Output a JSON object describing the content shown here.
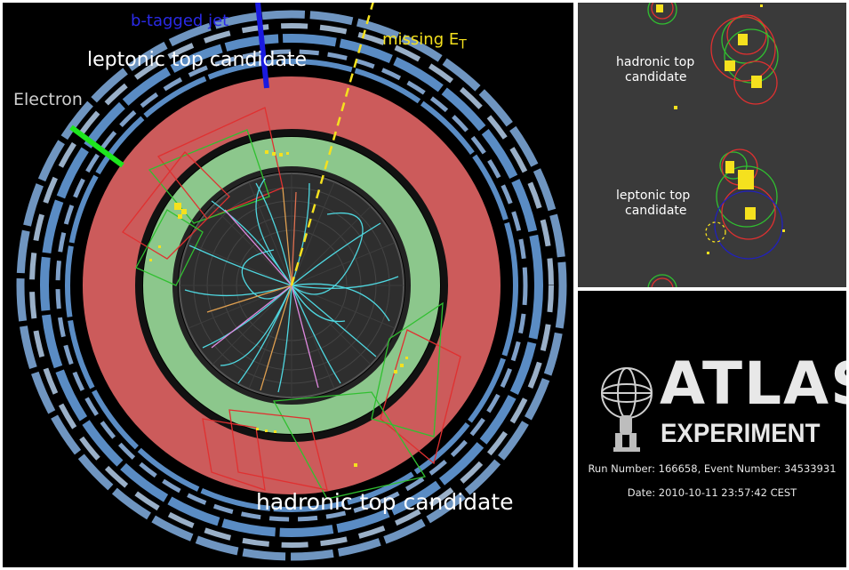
{
  "main": {
    "labels": {
      "b_tagged_jet": "b-tagged jet",
      "leptonic_top": "leptonic top candidate",
      "electron": "Electron",
      "missing_et_prefix": "missing E",
      "missing_et_sub": "T",
      "hadronic_top": "hadronic top candidate"
    }
  },
  "zoom": {
    "hadronic_line1": "hadronic top",
    "hadronic_line2": "candidate",
    "leptonic_line1": "leptonic top",
    "leptonic_line2": "candidate"
  },
  "logo": {
    "title": "ATLAS",
    "subtitle": "EXPERIMENT",
    "run_info": "Run Number: 166658, Event Number: 34533931",
    "date": "Date: 2010-10-11 23:57:42 CEST"
  },
  "colors": {
    "calorimeter_red": "#cc5b5b",
    "calorimeter_green": "#8cc78c",
    "muon_blue": "#5a8cc4",
    "track_cyan": "#4fd7e0",
    "missing_et": "#f5e11e",
    "electron": "#1ee61e",
    "b_jet": "#1a1ae0"
  }
}
